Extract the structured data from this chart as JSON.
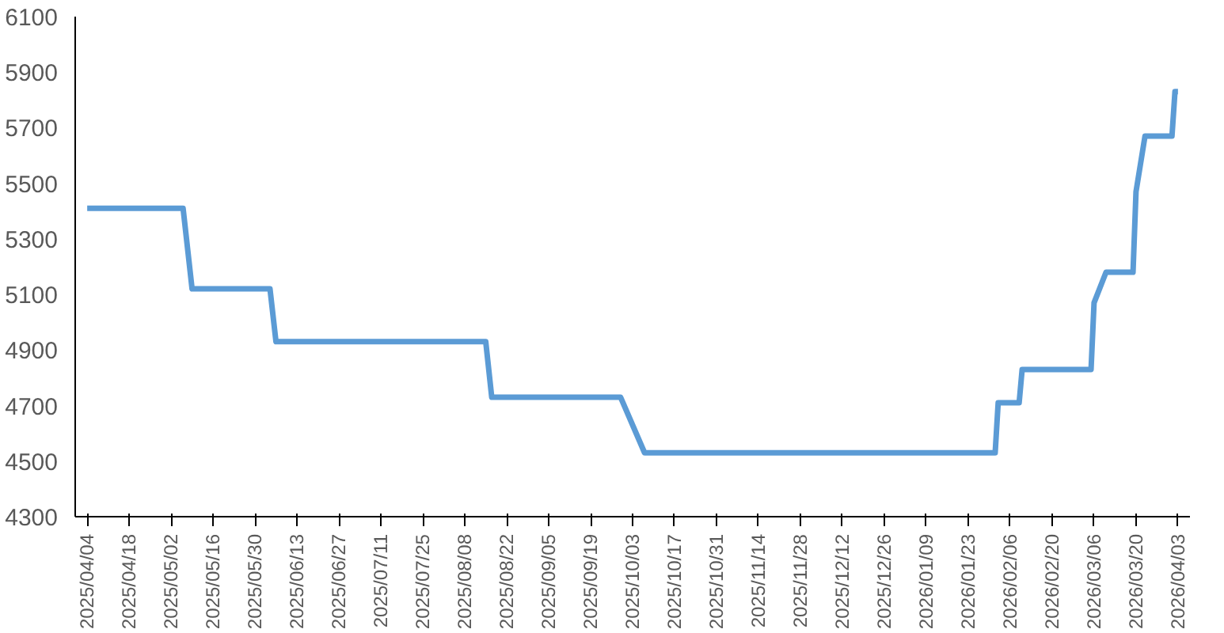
{
  "chart_data": {
    "type": "line",
    "x": [
      "2025-04-04",
      "2025-05-06",
      "2025-05-09",
      "2025-06-04",
      "2025-06-06",
      "2025-08-15",
      "2025-08-17",
      "2025-09-29",
      "2025-10-07",
      "2026-02-01",
      "2026-02-02",
      "2026-02-09",
      "2026-02-10",
      "2026-03-05",
      "2026-03-06",
      "2026-03-10",
      "2026-03-19",
      "2026-03-20",
      "2026-03-23",
      "2026-04-01",
      "2026-04-02",
      "2026-04-03"
    ],
    "series": [
      {
        "color": "#5b9bd5",
        "values": [
          5410,
          5410,
          5120,
          5120,
          4930,
          4930,
          4730,
          4730,
          4530,
          4530,
          4710,
          4710,
          4830,
          4830,
          5070,
          5180,
          5180,
          5470,
          5670,
          5670,
          5830,
          5830
        ]
      }
    ],
    "xlim": [
      "2025-03-31",
      "2026-04-07"
    ],
    "xticks": [
      {
        "value": "2025-04-04",
        "label": "2025/04/04"
      },
      {
        "value": "2025-04-18",
        "label": "2025/04/18"
      },
      {
        "value": "2025-05-02",
        "label": "2025/05/02"
      },
      {
        "value": "2025-05-16",
        "label": "2025/05/16"
      },
      {
        "value": "2025-05-30",
        "label": "2025/05/30"
      },
      {
        "value": "2025-06-13",
        "label": "2025/06/13"
      },
      {
        "value": "2025-06-27",
        "label": "2025/06/27"
      },
      {
        "value": "2025-07-11",
        "label": "2025/07/11"
      },
      {
        "value": "2025-07-25",
        "label": "2025/07/25"
      },
      {
        "value": "2025-08-08",
        "label": "2025/08/08"
      },
      {
        "value": "2025-08-22",
        "label": "2025/08/22"
      },
      {
        "value": "2025-09-05",
        "label": "2025/09/05"
      },
      {
        "value": "2025-09-19",
        "label": "2025/09/19"
      },
      {
        "value": "2025-10-03",
        "label": "2025/10/03"
      },
      {
        "value": "2025-10-17",
        "label": "2025/10/17"
      },
      {
        "value": "2025-10-31",
        "label": "2025/10/31"
      },
      {
        "value": "2025-11-14",
        "label": "2025/11/14"
      },
      {
        "value": "2025-11-28",
        "label": "2025/11/28"
      },
      {
        "value": "2025-12-12",
        "label": "2025/12/12"
      },
      {
        "value": "2025-12-26",
        "label": "2025/12/26"
      },
      {
        "value": "2026-01-09",
        "label": "2026/01/09"
      },
      {
        "value": "2026-01-23",
        "label": "2026/01/23"
      },
      {
        "value": "2026-02-06",
        "label": "2026/02/06"
      },
      {
        "value": "2026-02-20",
        "label": "2026/02/20"
      },
      {
        "value": "2026-03-06",
        "label": "2026/03/06"
      },
      {
        "value": "2026-03-20",
        "label": "2026/03/20"
      },
      {
        "value": "2026-04-03",
        "label": "2026/04/03"
      }
    ],
    "ylim": [
      4300,
      6100
    ],
    "yticks": [
      4300,
      4500,
      4700,
      4900,
      5100,
      5300,
      5500,
      5700,
      5900,
      6100
    ],
    "marker": "none",
    "line_style": "solid"
  }
}
